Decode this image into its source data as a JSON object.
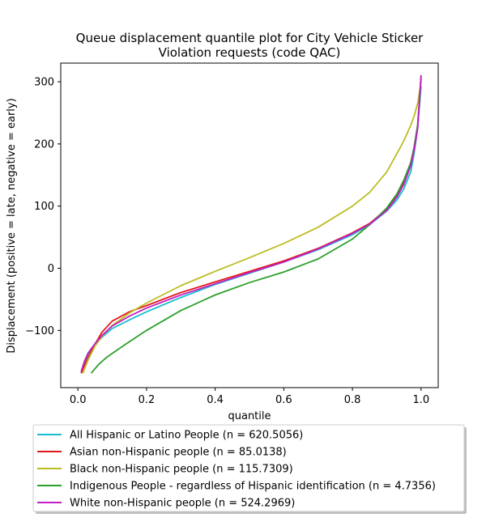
{
  "chart_data": {
    "type": "line",
    "title_lines": [
      "Queue displacement quantile plot for City Vehicle Sticker",
      "Violation  requests (code QAC)"
    ],
    "xlabel": "quantile",
    "ylabel": "Displacement (positive = late, negative = early)",
    "xlim": [
      -0.05,
      1.05
    ],
    "ylim": [
      -192,
      330
    ],
    "xticks": [
      0.0,
      0.2,
      0.4,
      0.6,
      0.8,
      1.0
    ],
    "xtick_labels": [
      "0.0",
      "0.2",
      "0.4",
      "0.6",
      "0.8",
      "1.0"
    ],
    "yticks": [
      -100,
      0,
      100,
      200,
      300
    ],
    "ytick_labels": [
      "−100",
      "0",
      "100",
      "200",
      "300"
    ],
    "grid": false,
    "legend_position": "below plot",
    "series": [
      {
        "name": "All Hispanic or Latino People (n = 620.5056)",
        "color": "#17becf",
        "x": [
          0.01,
          0.02,
          0.03,
          0.05,
          0.07,
          0.1,
          0.15,
          0.2,
          0.3,
          0.4,
          0.5,
          0.6,
          0.7,
          0.8,
          0.85,
          0.9,
          0.93,
          0.95,
          0.97,
          0.98,
          0.99,
          1.0
        ],
        "y": [
          -168,
          -150,
          -138,
          -123,
          -111,
          -97,
          -83,
          -70,
          -47,
          -26,
          -8,
          10,
          30,
          54,
          70,
          92,
          110,
          128,
          155,
          185,
          225,
          292
        ]
      },
      {
        "name": "Asian non-Hispanic people (n = 85.0138)",
        "color": "#e31a1c",
        "x": [
          0.01,
          0.02,
          0.03,
          0.05,
          0.07,
          0.1,
          0.15,
          0.2,
          0.3,
          0.4,
          0.5,
          0.6,
          0.7,
          0.8,
          0.85,
          0.9,
          0.93,
          0.95,
          0.97,
          0.98,
          0.99,
          1.0
        ],
        "y": [
          -168,
          -155,
          -143,
          -122,
          -103,
          -85,
          -70,
          -60,
          -39,
          -22,
          -5,
          12,
          32,
          57,
          72,
          95,
          118,
          140,
          170,
          195,
          230,
          308
        ]
      },
      {
        "name": "Black non-Hispanic people (n = 115.7309)",
        "color": "#bcbd22",
        "x": [
          0.015,
          0.03,
          0.05,
          0.07,
          0.1,
          0.15,
          0.2,
          0.3,
          0.4,
          0.5,
          0.6,
          0.7,
          0.8,
          0.85,
          0.9,
          0.93,
          0.95,
          0.97,
          0.98,
          0.99,
          1.0
        ],
        "y": [
          -168,
          -147,
          -125,
          -110,
          -92,
          -72,
          -56,
          -28,
          -5,
          17,
          40,
          66,
          100,
          122,
          155,
          185,
          205,
          230,
          245,
          265,
          300
        ]
      },
      {
        "name": "Indigenous People - regardless of Hispanic identification (n = 4.7356)",
        "color": "#2ca02c",
        "x": [
          0.04,
          0.06,
          0.08,
          0.1,
          0.15,
          0.2,
          0.3,
          0.4,
          0.5,
          0.6,
          0.7,
          0.8,
          0.85,
          0.9,
          0.93,
          0.95,
          0.97,
          0.98,
          0.99,
          1.0
        ],
        "y": [
          -168,
          -155,
          -145,
          -137,
          -118,
          -100,
          -68,
          -43,
          -23,
          -6,
          15,
          47,
          70,
          97,
          120,
          142,
          170,
          195,
          230,
          305
        ]
      },
      {
        "name": "White non-Hispanic people (n = 524.2969)",
        "color": "#c21fc2",
        "x": [
          0.01,
          0.02,
          0.03,
          0.05,
          0.07,
          0.1,
          0.15,
          0.2,
          0.3,
          0.4,
          0.5,
          0.6,
          0.7,
          0.8,
          0.85,
          0.9,
          0.93,
          0.95,
          0.97,
          0.98,
          0.99,
          1.0
        ],
        "y": [
          -165,
          -148,
          -136,
          -121,
          -108,
          -93,
          -77,
          -64,
          -43,
          -25,
          -7,
          10,
          31,
          56,
          71,
          93,
          115,
          135,
          165,
          190,
          225,
          310
        ]
      }
    ]
  }
}
